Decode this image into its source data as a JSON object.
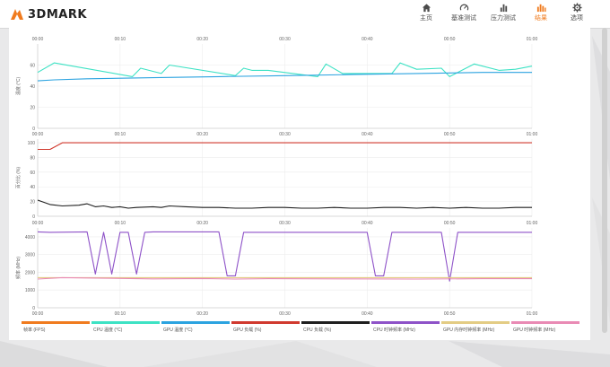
{
  "app": {
    "brand": "3DMARK"
  },
  "nav": [
    {
      "label": "主页",
      "icon": "home-icon"
    },
    {
      "label": "基准测试",
      "icon": "gauge-icon"
    },
    {
      "label": "压力测试",
      "icon": "bar-chart-icon"
    },
    {
      "label": "结果",
      "icon": "results-icon",
      "active": true
    },
    {
      "label": "选项",
      "icon": "gear-icon"
    }
  ],
  "colors": {
    "accent": "#f07b1e",
    "fps": "#f07b1e",
    "cpu_temp": "#3de2c4",
    "gpu_temp": "#2ba3e0",
    "gpu_load": "#d0392e",
    "cpu_load": "#1e1e1e",
    "cpu_clock": "#8e52c8",
    "gpu_mem_clock": "#e3cc84",
    "gpu_clock": "#e98ab4"
  },
  "chart_data": [
    {
      "type": "line",
      "name": "temperature",
      "ylabel": "温度 (°C)",
      "ylim": [
        0,
        80
      ],
      "yticks": [
        "0",
        "20",
        "40",
        "60"
      ],
      "xticks": [
        "00:00",
        "00:10",
        "00:20",
        "00:30",
        "00:40",
        "00:50",
        "01:00"
      ],
      "xlim": [
        0,
        60
      ],
      "series": [
        {
          "name": "CPU 温度 (°C)",
          "color": "#3de2c4",
          "x": [
            0,
            2,
            11.5,
            12.5,
            15,
            16,
            24,
            25,
            26,
            28,
            34,
            35,
            37,
            43,
            44,
            46,
            49,
            50,
            53,
            56,
            58,
            60
          ],
          "y": [
            53,
            62,
            49,
            57,
            52,
            60,
            50,
            57,
            55,
            55,
            49,
            61,
            52,
            52,
            62,
            56,
            57,
            49,
            61,
            55,
            56,
            59
          ]
        },
        {
          "name": "GPU 温度 (°C)",
          "color": "#2ba3e0",
          "x": [
            0,
            2,
            6,
            14,
            22,
            30,
            38,
            46,
            54,
            60
          ],
          "y": [
            45,
            46,
            47,
            48,
            49,
            50,
            51,
            52,
            53,
            53
          ]
        }
      ]
    },
    {
      "type": "line",
      "name": "load",
      "ylabel": "百分比 (%)",
      "ylim": [
        0,
        105
      ],
      "yticks": [
        "0",
        "20",
        "40",
        "60",
        "80",
        "100"
      ],
      "xticks": [
        "00:00",
        "00:10",
        "00:20",
        "00:30",
        "00:40",
        "00:50",
        "01:00"
      ],
      "xlim": [
        0,
        60
      ],
      "series": [
        {
          "name": "GPU 负载 (%)",
          "color": "#d0392e",
          "x": [
            0,
            1.5,
            3,
            60
          ],
          "y": [
            91,
            91,
            100,
            100
          ]
        },
        {
          "name": "CPU 负载 (%)",
          "color": "#1e1e1e",
          "x": [
            0,
            1.5,
            3,
            5,
            6,
            7,
            8,
            9,
            10,
            11,
            12,
            14,
            15,
            16,
            18,
            20,
            22,
            24,
            26,
            28,
            30,
            32,
            34,
            36,
            38,
            40,
            42,
            44,
            46,
            48,
            50,
            52,
            54,
            56,
            58,
            60
          ],
          "y": [
            22,
            16,
            14,
            15,
            17,
            13,
            14,
            12,
            13,
            11,
            12,
            13,
            12,
            14,
            13,
            12,
            12,
            11,
            11,
            12,
            12,
            11,
            11,
            12,
            11,
            11,
            12,
            12,
            11,
            12,
            11,
            12,
            11,
            11,
            12,
            12
          ]
        }
      ]
    },
    {
      "type": "line",
      "name": "clock",
      "ylabel": "频率 (MHz)",
      "ylim": [
        0,
        4500
      ],
      "yticks": [
        "0",
        "1000",
        "2000",
        "3000",
        "4000"
      ],
      "xticks": [
        "00:00",
        "00:10",
        "00:20",
        "00:30",
        "00:40",
        "00:50",
        "01:00"
      ],
      "xlim": [
        0,
        60
      ],
      "series": [
        {
          "name": "CPU 时钟频率 (MHz)",
          "color": "#8e52c8",
          "x": [
            0,
            1.5,
            6,
            7,
            8,
            9,
            10,
            11,
            12,
            13,
            14,
            15,
            22,
            23,
            24,
            25,
            40,
            41,
            42,
            43,
            49,
            50,
            51,
            52,
            60
          ],
          "y": [
            4280,
            4250,
            4280,
            1900,
            4250,
            1900,
            4250,
            4250,
            1900,
            4250,
            4280,
            4280,
            4280,
            1800,
            1800,
            4250,
            4250,
            1800,
            1800,
            4250,
            4250,
            1500,
            4250,
            4250,
            4250
          ]
        },
        {
          "name": "GPU 内存时钟频率 (MHz)",
          "color": "#e3cc84",
          "x": [
            0,
            60
          ],
          "y": [
            1700,
            1700
          ]
        },
        {
          "name": "GPU 时钟频率 (MHz)",
          "color": "#e98ab4",
          "x": [
            0,
            3,
            6,
            14,
            20,
            24,
            28,
            38,
            46,
            54,
            60
          ],
          "y": [
            1620,
            1700,
            1680,
            1630,
            1650,
            1620,
            1640,
            1630,
            1620,
            1640,
            1640
          ]
        }
      ]
    }
  ],
  "legend": [
    {
      "label": "帧率 (FPS)",
      "color": "#f07b1e"
    },
    {
      "label": "CPU 温度 (°C)",
      "color": "#3de2c4"
    },
    {
      "label": "GPU 温度 (°C)",
      "color": "#2ba3e0"
    },
    {
      "label": "GPU 负载 (%)",
      "color": "#d0392e"
    },
    {
      "label": "CPU 负载 (%)",
      "color": "#1e1e1e"
    },
    {
      "label": "CPU 时钟频率 (MHz)",
      "color": "#8e52c8"
    },
    {
      "label": "GPU 内存时钟频率 (MHz)",
      "color": "#e3cc84"
    },
    {
      "label": "GPU 时钟频率 (MHz)",
      "color": "#e98ab4"
    }
  ]
}
